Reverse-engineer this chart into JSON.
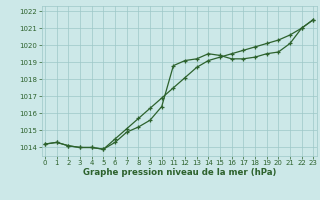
{
  "line1_x": [
    0,
    1,
    2,
    3,
    4,
    5,
    6,
    7,
    8,
    9,
    10,
    11,
    12,
    13,
    14,
    15,
    16,
    17,
    18,
    19,
    20,
    21,
    22,
    23
  ],
  "line1_y": [
    1014.2,
    1014.3,
    1014.1,
    1014.0,
    1014.0,
    1013.9,
    1014.3,
    1014.9,
    1015.2,
    1015.6,
    1016.4,
    1018.8,
    1019.1,
    1019.2,
    1019.5,
    1019.4,
    1019.2,
    1019.2,
    1019.3,
    1019.5,
    1019.6,
    1020.1,
    1021.0,
    1021.5
  ],
  "line2_x": [
    0,
    1,
    2,
    3,
    4,
    5,
    6,
    7,
    8,
    9,
    10,
    11,
    12,
    13,
    14,
    15,
    16,
    17,
    18,
    19,
    20,
    21,
    22,
    23
  ],
  "line2_y": [
    1014.2,
    1014.3,
    1014.1,
    1014.0,
    1014.0,
    1013.9,
    1014.5,
    1015.1,
    1015.7,
    1016.3,
    1016.9,
    1017.5,
    1018.1,
    1018.7,
    1019.1,
    1019.3,
    1019.5,
    1019.7,
    1019.9,
    1020.1,
    1020.3,
    1020.6,
    1021.0,
    1021.5
  ],
  "ylim_low": 1013.5,
  "ylim_high": 1022.3,
  "yticks": [
    1014,
    1015,
    1016,
    1017,
    1018,
    1019,
    1020,
    1021,
    1022
  ],
  "xlim_low": -0.3,
  "xlim_high": 23.3,
  "xticks": [
    0,
    1,
    2,
    3,
    4,
    5,
    6,
    7,
    8,
    9,
    10,
    11,
    12,
    13,
    14,
    15,
    16,
    17,
    18,
    19,
    20,
    21,
    22,
    23
  ],
  "xlabel": "Graphe pression niveau de la mer (hPa)",
  "bg_color": "#cce8e8",
  "grid_color": "#9ec8c8",
  "line_color": "#2d622d",
  "text_color": "#2d622d",
  "marker_size": 3.5,
  "linewidth": 0.9,
  "tick_fontsize": 5.0,
  "xlabel_fontsize": 6.2
}
